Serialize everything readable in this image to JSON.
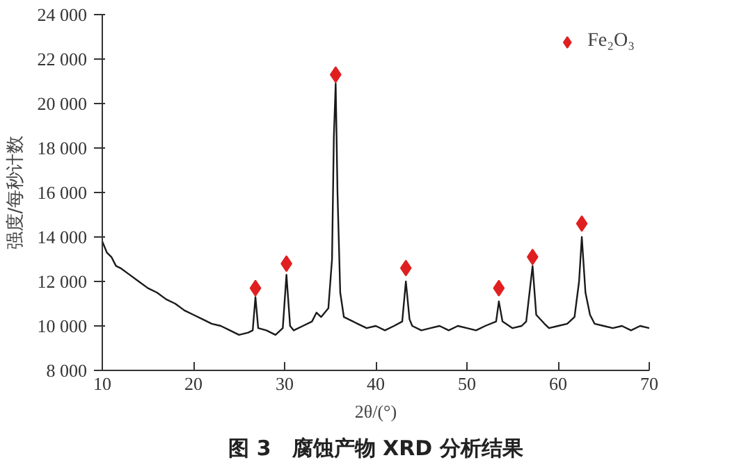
{
  "chart_data": {
    "type": "line",
    "xlabel": "2θ/(°)",
    "ylabel": "强度/每秒计数",
    "annotations": [
      "图 3　腐蚀产物 XRD 分析结果"
    ],
    "xlim": [
      10,
      70
    ],
    "xticks": [
      10,
      20,
      30,
      40,
      50,
      60,
      70
    ],
    "ylim": [
      8000,
      24000
    ],
    "yticks": [
      {
        "value": 8000,
        "label": "8 000"
      },
      {
        "value": 10000,
        "label": "10 000"
      },
      {
        "value": 12000,
        "label": "12 000"
      },
      {
        "value": 14000,
        "label": "14 000"
      },
      {
        "value": 16000,
        "label": "16 000"
      },
      {
        "value": 18000,
        "label": "18 000"
      },
      {
        "value": 20000,
        "label": "20 000"
      },
      {
        "value": 22000,
        "label": "22 000"
      },
      {
        "value": 24000,
        "label": "24 000"
      }
    ],
    "grid": false,
    "legend": "top right",
    "series": [
      {
        "color": "#1a1a1a",
        "marker": "none",
        "line_style": "solid",
        "x": [
          10,
          10.5,
          11,
          11.5,
          12,
          13,
          14,
          15,
          16,
          17,
          18,
          19,
          20,
          21,
          22,
          23,
          24,
          25,
          26,
          26.5,
          26.8,
          27.1,
          28,
          29,
          29.8,
          30.2,
          30.6,
          31,
          32,
          33,
          33.5,
          34,
          34.8,
          35.2,
          35.4,
          35.6,
          35.8,
          36.1,
          36.5,
          37,
          38,
          39,
          40,
          41,
          42,
          42.9,
          43.3,
          43.7,
          44,
          45,
          46,
          47,
          48,
          49,
          50,
          51,
          52,
          53.2,
          53.5,
          53.9,
          55,
          56,
          56.5,
          57.2,
          57.6,
          58.5,
          59,
          60,
          61,
          61.8,
          62.3,
          62.6,
          63,
          63.5,
          64,
          65,
          66,
          67,
          68,
          69,
          70
        ],
        "values": [
          13800,
          13300,
          13100,
          12700,
          12600,
          12300,
          12000,
          11700,
          11500,
          11200,
          11000,
          10700,
          10500,
          10300,
          10100,
          10000,
          9800,
          9600,
          9700,
          9800,
          11300,
          9900,
          9800,
          9600,
          9900,
          12300,
          10000,
          9800,
          10000,
          10200,
          10600,
          10400,
          10800,
          13000,
          18500,
          20900,
          16000,
          11500,
          10400,
          10300,
          10100,
          9900,
          10000,
          9800,
          10000,
          10200,
          12000,
          10300,
          10000,
          9800,
          9900,
          10000,
          9800,
          10000,
          9900,
          9800,
          10000,
          10200,
          11100,
          10200,
          9900,
          10000,
          10200,
          12700,
          10500,
          10100,
          9900,
          10000,
          10100,
          10400,
          12000,
          14000,
          11500,
          10500,
          10100,
          10000,
          9900,
          10000,
          9800,
          10000,
          9900
        ]
      },
      {
        "type": "scatter",
        "name": "Fe₂O₃",
        "color": "#e02020",
        "marker": "diamond",
        "x": [
          26.8,
          30.2,
          35.6,
          43.3,
          53.5,
          57.2,
          62.6
        ],
        "values": [
          11700,
          12800,
          21300,
          12600,
          11700,
          13100,
          14600
        ]
      }
    ]
  }
}
